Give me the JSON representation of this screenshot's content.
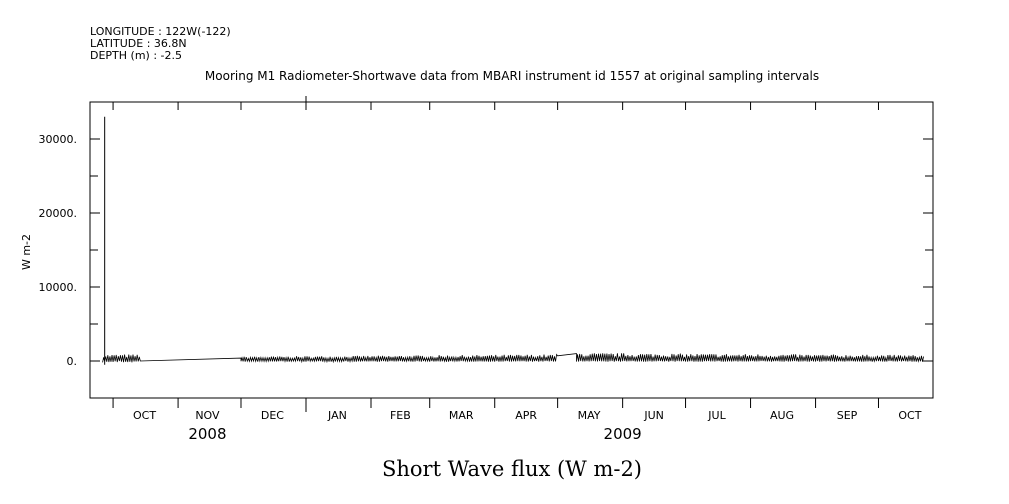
{
  "header": {
    "longitude": "LONGITUDE : 122W(-122)",
    "latitude": "LATITUDE : 36.8N",
    "depth": "DEPTH (m) : -2.5"
  },
  "chart_data": {
    "type": "line",
    "title": "Mooring M1 Radiometer-Shortwave data from MBARI instrument id 1557 at original sampling intervals",
    "ylabel": "W m-2",
    "xlabel": "Short Wave flux (W m-2)",
    "ylim": [
      -5000,
      35000
    ],
    "yticks": [
      0,
      10000,
      20000,
      30000
    ],
    "ytick_labels": [
      "0.",
      "10000.",
      "20000.",
      "30000."
    ],
    "xlim": [
      "2008-09-20",
      "2009-10-27"
    ],
    "month_labels": [
      "OCT",
      "NOV",
      "DEC",
      "JAN",
      "FEB",
      "MAR",
      "APR",
      "MAY",
      "JUN",
      "JUL",
      "AUG",
      "SEP",
      "OCT"
    ],
    "month_label_dates": [
      "2008-10-16",
      "2008-11-15",
      "2008-12-16",
      "2009-01-16",
      "2009-02-15",
      "2009-03-16",
      "2009-04-16",
      "2009-05-16",
      "2009-06-16",
      "2009-07-16",
      "2009-08-16",
      "2009-09-16",
      "2009-10-16"
    ],
    "year_labels": [
      "2008",
      "2009"
    ],
    "year_label_dates": [
      "2008-11-15",
      "2009-06-01"
    ],
    "spike": {
      "date": "2008-09-27",
      "value": 33000
    },
    "segments": [
      {
        "start": "2008-09-26",
        "end": "2008-10-14",
        "type": "diurnal",
        "max": 900,
        "min": -200
      },
      {
        "start": "2008-10-14",
        "end": "2008-12-01",
        "type": "flat",
        "from": 0,
        "to": 400
      },
      {
        "start": "2008-12-01",
        "end": "2009-05-01",
        "type": "diurnal",
        "max": 600,
        "max_end": 900,
        "min": -100
      },
      {
        "start": "2009-05-01",
        "end": "2009-05-10",
        "type": "flat",
        "from": 700,
        "to": 1000
      },
      {
        "start": "2009-05-10",
        "end": "2009-10-23",
        "type": "diurnal",
        "max": 1100,
        "max_end": 800,
        "min": -100
      }
    ],
    "grid": false
  }
}
